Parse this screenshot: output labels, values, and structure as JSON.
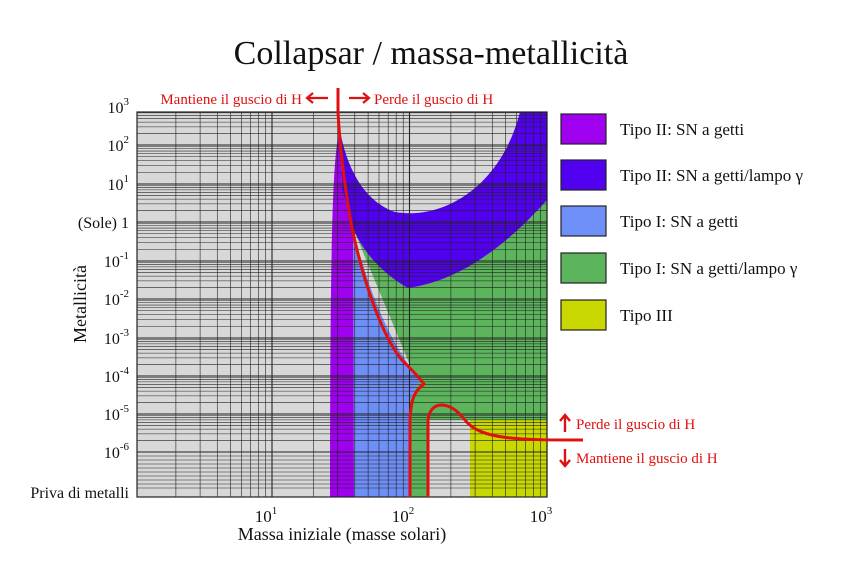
{
  "title": "Collapsar / massa-metallicità",
  "axes": {
    "x_label": "Massa iniziale (masse solari)",
    "y_label": "Metallicità",
    "x_ticks": [
      {
        "base": "10",
        "exp": "1"
      },
      {
        "base": "10",
        "exp": "2"
      },
      {
        "base": "10",
        "exp": "3"
      }
    ],
    "y_ticks": [
      {
        "base": "10",
        "exp": "3"
      },
      {
        "base": "10",
        "exp": "2"
      },
      {
        "base": "10",
        "exp": "1"
      },
      {
        "text": "(Sole)  1"
      },
      {
        "base": "10",
        "exp": "-1"
      },
      {
        "base": "10",
        "exp": "-2"
      },
      {
        "base": "10",
        "exp": "-3"
      },
      {
        "base": "10",
        "exp": "-4"
      },
      {
        "base": "10",
        "exp": "-5"
      },
      {
        "base": "10",
        "exp": "-6"
      },
      {
        "text": "Priva di metalli"
      }
    ],
    "x_scale": "log",
    "y_scale": "log"
  },
  "annotations": {
    "top_left": "Mantiene il guscio di H",
    "top_right": "Perde il guscio di H",
    "right_up": "Perde il guscio di H",
    "right_down": "Mantiene il guscio di H"
  },
  "legend": [
    {
      "label": "Tipo II: SN a getti",
      "color": "#a000f0"
    },
    {
      "label": "Tipo II: SN a getti/lampo γ",
      "color": "#5200f0"
    },
    {
      "label": "Tipo I: SN a getti",
      "color": "#6f8ff8"
    },
    {
      "label": "Tipo I: SN a getti/lampo γ",
      "color": "#5cb45c"
    },
    {
      "label": "Tipo III",
      "color": "#c8d800"
    }
  ],
  "colors": {
    "background": "#d8d8d8",
    "grid": "#222222",
    "boundary": "#e01010"
  }
}
